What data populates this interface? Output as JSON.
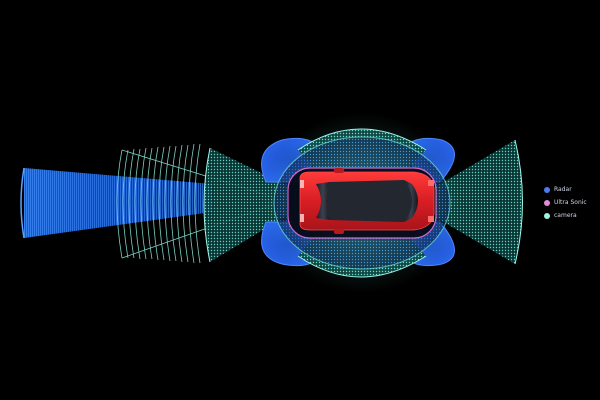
{
  "diagram": {
    "subject": "car-sensor-coverage",
    "colors": {
      "background": "#000000",
      "radar": "#3a6fe8",
      "ultrasonic": "#e58ad6",
      "camera": "#6ee9d8",
      "car_body": "#d81e24"
    }
  },
  "legend": {
    "items": [
      {
        "label": "Radar",
        "color": "#4a7cf0"
      },
      {
        "label": "Ultra Sonic",
        "color": "#e889d8"
      },
      {
        "label": "camera",
        "color": "#9ef2e4"
      }
    ]
  }
}
